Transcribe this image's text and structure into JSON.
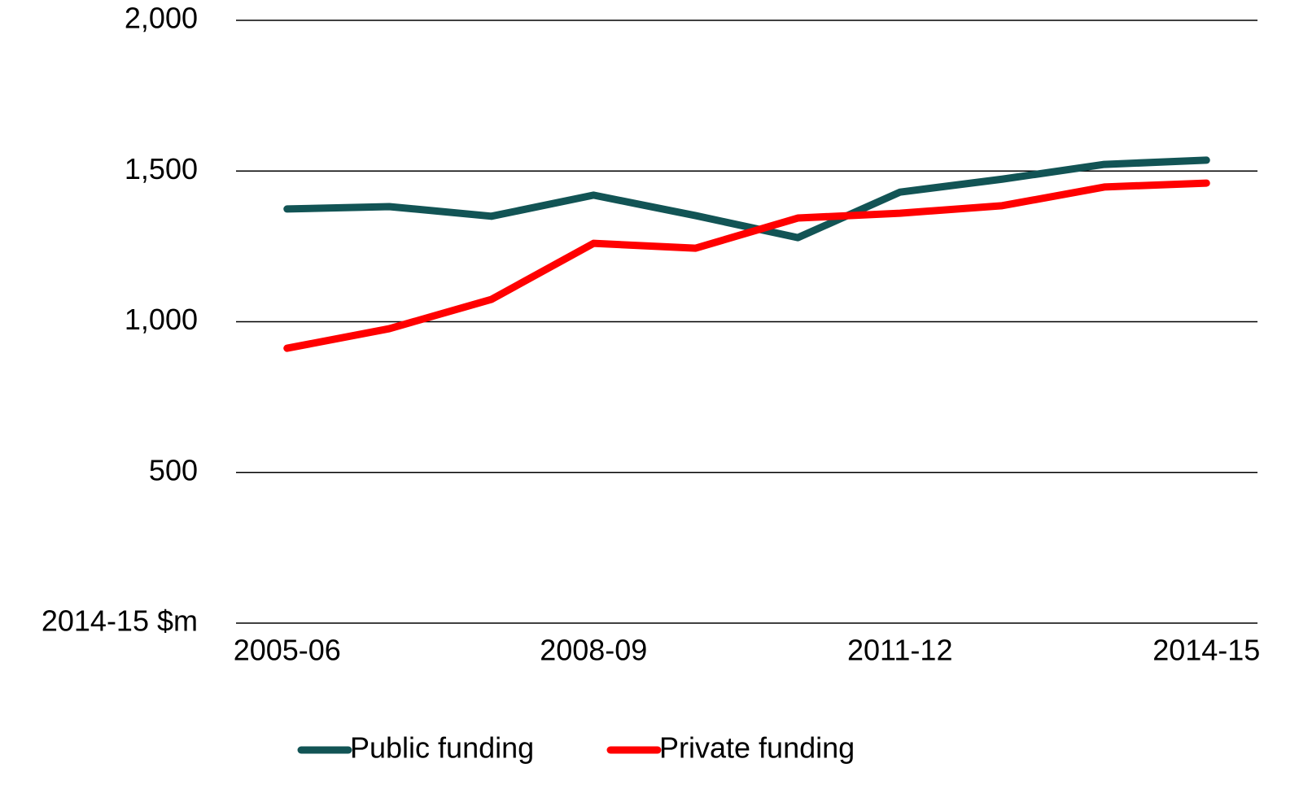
{
  "chart_data": {
    "type": "line",
    "categories": [
      "2005-06",
      null,
      null,
      "2008-09",
      null,
      null,
      "2011-12",
      null,
      null,
      "2014-15"
    ],
    "series": [
      {
        "name": "Public funding",
        "color": "#125455",
        "values": [
          1374,
          1382,
          1350,
          1420,
          1352,
          1279,
          1430,
          1473,
          1522,
          1536
        ]
      },
      {
        "name": "Private funding",
        "color": "#ff0000",
        "values": [
          912,
          977,
          1074,
          1260,
          1244,
          1344,
          1360,
          1385,
          1447,
          1460
        ]
      }
    ],
    "ylim": [
      0,
      2000
    ],
    "yticks": [
      {
        "value": 0,
        "label": "2014-15 $m"
      },
      500,
      {
        "value": 1000,
        "label": "1,000"
      },
      {
        "value": 1500,
        "label": "1,500"
      },
      {
        "value": 2000,
        "label": "2,000"
      }
    ],
    "grid": true,
    "legend": "bottom"
  }
}
